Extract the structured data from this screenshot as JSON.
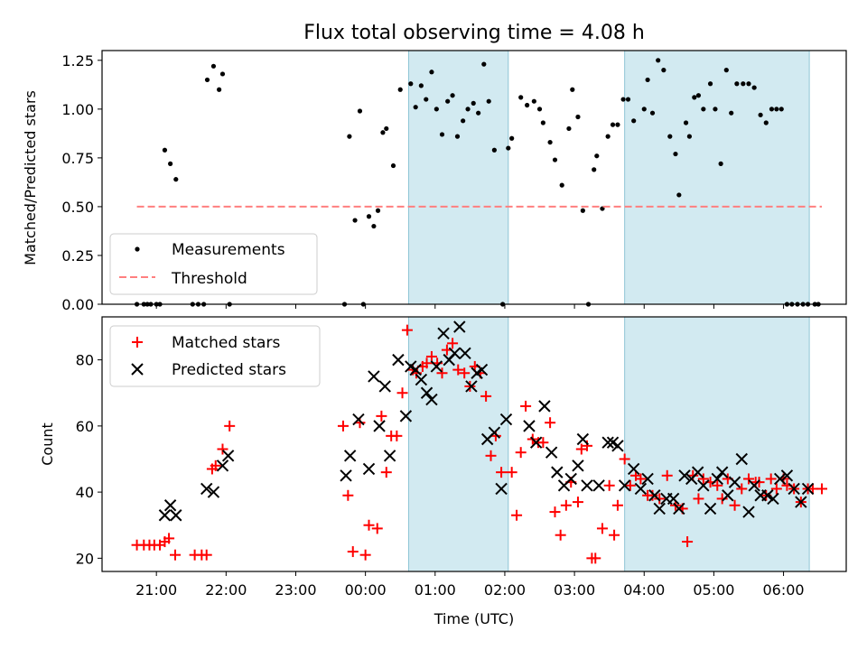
{
  "figure": {
    "title": "Flux total observing time = 4.08 h",
    "xlabel": "Time (UTC)",
    "x_ticks": [
      "21:00",
      "22:00",
      "23:00",
      "00:00",
      "01:00",
      "02:00",
      "03:00",
      "04:00",
      "05:00",
      "06:00"
    ],
    "x_tick_hours": [
      21,
      22,
      23,
      24,
      25,
      26,
      27,
      28,
      29,
      30
    ],
    "x_unit_note": "hours UTC; values >= 24 fall on the next day",
    "xlim": [
      20.22,
      30.9
    ],
    "shaded_intervals": [
      [
        24.62,
        26.05
      ],
      [
        27.72,
        30.37
      ]
    ],
    "shade_color": "#add8e6"
  },
  "chart_data": [
    {
      "type": "scatter",
      "ylabel": "Matched/Predicted stars",
      "ylim": [
        0,
        1.3
      ],
      "y_ticks": [
        "0.00",
        "0.25",
        "0.50",
        "0.75",
        "1.00",
        "1.25"
      ],
      "y_tick_values": [
        0,
        0.25,
        0.5,
        0.75,
        1.0,
        1.25
      ],
      "legend": {
        "position": "lower-left"
      },
      "series": [
        {
          "name": "Measurements",
          "color": "#000000",
          "marker": "dot",
          "x": [
            20.72,
            20.82,
            20.87,
            20.92,
            21.0,
            21.05,
            21.12,
            21.2,
            21.28,
            21.52,
            21.6,
            21.68,
            21.73,
            21.82,
            21.9,
            21.95,
            22.05,
            23.7,
            23.77,
            23.85,
            23.92,
            23.97,
            24.05,
            24.12,
            24.18,
            24.25,
            24.3,
            24.4,
            24.5,
            24.65,
            24.72,
            24.8,
            24.87,
            24.95,
            25.02,
            25.1,
            25.18,
            25.25,
            25.32,
            25.4,
            25.47,
            25.55,
            25.62,
            25.7,
            25.77,
            25.85,
            25.97,
            26.05,
            26.1,
            26.23,
            26.32,
            26.42,
            26.5,
            26.55,
            26.65,
            26.72,
            26.82,
            26.92,
            26.97,
            27.05,
            27.12,
            27.2,
            27.28,
            27.32,
            27.4,
            27.48,
            27.55,
            27.62,
            27.7,
            27.77,
            27.85,
            28.0,
            28.05,
            28.12,
            28.2,
            28.28,
            28.37,
            28.45,
            28.5,
            28.6,
            28.65,
            28.72,
            28.78,
            28.85,
            28.95,
            29.02,
            29.1,
            29.18,
            29.25,
            29.33,
            29.42,
            29.5,
            29.58,
            29.67,
            29.75,
            29.83,
            29.9,
            29.97,
            30.05,
            30.12,
            30.2,
            30.28,
            30.35,
            30.45,
            30.5
          ],
          "y": [
            0,
            0,
            0,
            0,
            0,
            0,
            0.79,
            0.72,
            0.64,
            0,
            0,
            0,
            1.15,
            1.22,
            1.1,
            1.18,
            0,
            0,
            0.86,
            0.43,
            0.99,
            0,
            0.45,
            0.4,
            0.48,
            0.88,
            0.9,
            0.71,
            1.1,
            1.13,
            1.01,
            1.12,
            1.05,
            1.19,
            1.0,
            0.87,
            1.04,
            1.07,
            0.86,
            0.94,
            1.0,
            1.03,
            0.98,
            1.23,
            1.04,
            0.79,
            0,
            0.8,
            0.85,
            1.06,
            1.02,
            1.04,
            1.0,
            0.93,
            0.83,
            0.74,
            0.61,
            0.9,
            1.1,
            0.96,
            0.48,
            0,
            0.69,
            0.76,
            0.49,
            0.86,
            0.92,
            0.92,
            1.05,
            1.05,
            0.94,
            1.0,
            1.15,
            0.98,
            1.25,
            1.2,
            0.86,
            0.77,
            0.56,
            0.93,
            0.86,
            1.06,
            1.07,
            1.0,
            1.13,
            1.0,
            0.72,
            1.2,
            0.98,
            1.13,
            1.13,
            1.13,
            1.11,
            0.97,
            0.93,
            1.0,
            1.0,
            1.0,
            0,
            0,
            0,
            0,
            0,
            0,
            0
          ]
        },
        {
          "name": "Threshold",
          "color": "#ff7f7f",
          "style": "dashed",
          "x": [
            20.72,
            30.55
          ],
          "y": [
            0.5,
            0.5
          ]
        }
      ]
    },
    {
      "type": "scatter",
      "ylabel": "Count",
      "ylim": [
        16,
        93
      ],
      "y_ticks": [
        "20",
        "40",
        "60",
        "80"
      ],
      "y_tick_values": [
        20,
        40,
        60,
        80
      ],
      "legend": {
        "position": "top-left"
      },
      "series": [
        {
          "name": "Matched stars",
          "color": "#ff0000",
          "marker": "plus",
          "x": [
            20.72,
            20.82,
            20.9,
            20.97,
            21.05,
            21.12,
            21.18,
            21.27,
            21.55,
            21.65,
            21.72,
            21.8,
            21.85,
            21.95,
            22.05,
            23.68,
            23.75,
            23.82,
            23.92,
            24.0,
            24.05,
            24.17,
            24.23,
            24.3,
            24.37,
            24.45,
            24.53,
            24.6,
            24.68,
            24.73,
            24.82,
            24.88,
            24.95,
            25.03,
            25.1,
            25.17,
            25.25,
            25.33,
            25.42,
            25.5,
            25.57,
            25.65,
            25.73,
            25.8,
            25.87,
            25.95,
            26.1,
            26.17,
            26.23,
            26.3,
            26.4,
            26.48,
            26.55,
            26.65,
            26.72,
            26.8,
            26.88,
            26.95,
            27.05,
            27.1,
            27.18,
            27.25,
            27.3,
            27.4,
            27.5,
            27.57,
            27.62,
            27.72,
            27.8,
            27.88,
            27.95,
            28.05,
            28.12,
            28.22,
            28.33,
            28.45,
            28.55,
            28.62,
            28.7,
            28.78,
            28.85,
            28.95,
            29.05,
            29.12,
            29.2,
            29.3,
            29.4,
            29.5,
            29.6,
            29.65,
            29.75,
            29.82,
            29.9,
            30.0,
            30.05,
            30.15,
            30.25,
            30.35,
            30.42,
            30.55
          ],
          "y": [
            24,
            24,
            24,
            24,
            24,
            25,
            26,
            21,
            21,
            21,
            21,
            47,
            48,
            53,
            60,
            60,
            39,
            22,
            61,
            21,
            30,
            29,
            63,
            46,
            57,
            57,
            70,
            89,
            77,
            76,
            78,
            79,
            81,
            79,
            76,
            83,
            85,
            77,
            76,
            72,
            78,
            76,
            69,
            51,
            57,
            46,
            46,
            33,
            52,
            66,
            56,
            55,
            55,
            61,
            34,
            27,
            36,
            43,
            37,
            53,
            54,
            20,
            20,
            29,
            42,
            27,
            36,
            50,
            42,
            45,
            44,
            39,
            39,
            38,
            45,
            36,
            35,
            25,
            45,
            38,
            44,
            43,
            42,
            38,
            44,
            36,
            41,
            44,
            43,
            43,
            39,
            44,
            41,
            44,
            42,
            41,
            37,
            41,
            41,
            41
          ],
          "note": "values partially estimated from figure"
        },
        {
          "name": "Predicted stars",
          "color": "#000000",
          "marker": "x",
          "x": [
            21.12,
            21.2,
            21.28,
            21.72,
            21.82,
            21.95,
            22.03,
            23.72,
            23.78,
            23.9,
            24.05,
            24.12,
            24.2,
            24.28,
            24.35,
            24.47,
            24.58,
            24.65,
            24.72,
            24.8,
            24.88,
            24.95,
            25.02,
            25.12,
            25.2,
            25.28,
            25.35,
            25.43,
            25.52,
            25.6,
            25.67,
            25.75,
            25.85,
            25.95,
            26.02,
            26.35,
            26.45,
            26.57,
            26.67,
            26.75,
            26.85,
            26.95,
            27.05,
            27.12,
            27.18,
            27.35,
            27.48,
            27.55,
            27.62,
            27.72,
            27.85,
            27.95,
            28.05,
            28.15,
            28.22,
            28.32,
            28.42,
            28.5,
            28.58,
            28.68,
            28.77,
            28.85,
            28.95,
            29.05,
            29.12,
            29.2,
            29.3,
            29.4,
            29.5,
            29.58,
            29.67,
            29.77,
            29.85,
            29.95,
            30.05,
            30.15,
            30.25,
            30.35
          ],
          "y": [
            33,
            36,
            33,
            41,
            40,
            48,
            51,
            45,
            51,
            62,
            47,
            75,
            60,
            72,
            51,
            80,
            63,
            78,
            77,
            74,
            70,
            68,
            78,
            88,
            80,
            82,
            90,
            82,
            72,
            76,
            77,
            56,
            58,
            41,
            62,
            60,
            55,
            66,
            52,
            46,
            42,
            44,
            48,
            56,
            42,
            42,
            55,
            55,
            54,
            42,
            47,
            41,
            44,
            39,
            35,
            38,
            38,
            35,
            45,
            44,
            46,
            42,
            35,
            44,
            46,
            39,
            43,
            50,
            34,
            42,
            39,
            39,
            38,
            44,
            45,
            41,
            37,
            41
          ],
          "note": "values partially estimated from figure"
        }
      ]
    }
  ]
}
